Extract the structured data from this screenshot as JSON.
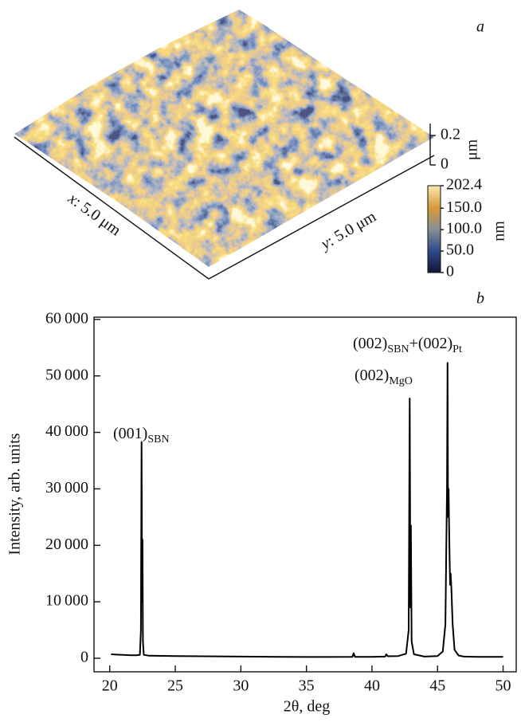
{
  "chart_data": [
    {
      "type": "surface",
      "panel_label": "a",
      "x_axis_label": {
        "var": "x",
        "text": ": 5.0 μm"
      },
      "y_axis_label": {
        "var": "y",
        "text": ": 5.0 μm"
      },
      "z_axis_label": "μm",
      "zlim": [
        0,
        0.2
      ],
      "zticks": [
        0,
        0.2
      ],
      "colorbar": {
        "label": "nm",
        "lim": [
          0,
          202.4
        ],
        "ticks": [
          0,
          {
            "value": 50,
            "label": "50.0"
          },
          {
            "value": 100,
            "label": "100.0"
          },
          {
            "value": 150,
            "label": "150.0"
          },
          202.4
        ],
        "colors": [
          "#15163a",
          "#2f4a8a",
          "#8a8f95",
          "#d89a3a",
          "#f7eab0"
        ]
      }
    },
    {
      "type": "line",
      "panel_label": "b",
      "x_label": "2θ, deg",
      "y_label": "Intensity, arb. units",
      "xlim": [
        18.8,
        51
      ],
      "ylim": [
        -2400,
        60400
      ],
      "xticks": [
        20,
        25,
        30,
        35,
        40,
        45,
        50
      ],
      "yticks": [
        0,
        {
          "value": 10000,
          "label": "10 000"
        },
        {
          "value": 20000,
          "label": "20 000"
        },
        {
          "value": 30000,
          "label": "30 000"
        },
        {
          "value": 40000,
          "label": "40 000"
        },
        {
          "value": 50000,
          "label": "50 000"
        },
        {
          "value": 60000,
          "label": "60 000"
        }
      ],
      "color": "#000000",
      "x": [
        20.1,
        20.5,
        21,
        21.5,
        22,
        22.3,
        22.38,
        22.43,
        22.47,
        22.5,
        22.53,
        22.6,
        23,
        25,
        27,
        30,
        33,
        36,
        38.5,
        38.6,
        38.7,
        40,
        41,
        41.1,
        41.2,
        42,
        42.6,
        42.8,
        42.88,
        42.93,
        42.97,
        43.02,
        43.2,
        44,
        45,
        45.4,
        45.6,
        45.72,
        45.76,
        45.8,
        45.84,
        45.9,
        45.96,
        46,
        46.05,
        46.15,
        46.3,
        46.6,
        47,
        48,
        50
      ],
      "values": [
        700,
        650,
        600,
        550,
        520,
        600,
        5000,
        38300,
        10000,
        21000,
        3000,
        600,
        450,
        400,
        350,
        300,
        250,
        230,
        250,
        900,
        250,
        250,
        300,
        700,
        350,
        400,
        800,
        5000,
        46000,
        9000,
        23500,
        3000,
        700,
        300,
        400,
        1200,
        6000,
        30000,
        52300,
        25000,
        30000,
        20000,
        13000,
        15000,
        12800,
        6000,
        1500,
        500,
        300,
        250,
        250
      ],
      "annotations": [
        {
          "text": "(001)",
          "sub": "SBN"
        },
        {
          "text": "(002)",
          "sub": "MgO"
        },
        {
          "text": "(002)",
          "sub": "SBN",
          "joiner": "+",
          "text2": "(002)",
          "sub2": "Pt"
        }
      ]
    }
  ]
}
